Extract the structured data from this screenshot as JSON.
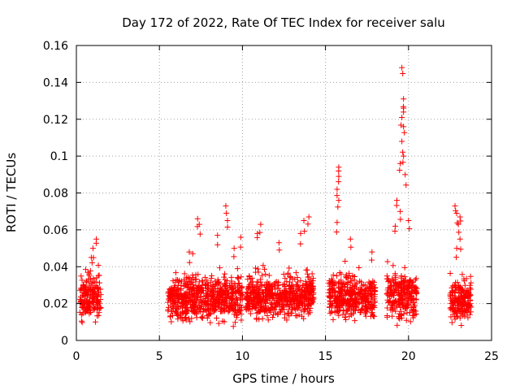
{
  "chart_data": {
    "type": "scatter",
    "title": "Day 172 of 2022, Rate Of TEC Index for receiver salu",
    "xlabel": "GPS time / hours",
    "ylabel": "ROTI / TECUs",
    "xlim": [
      0,
      25
    ],
    "ylim": [
      0,
      0.16
    ],
    "grid": true,
    "marker": "+",
    "color": "#ff0000",
    "x_ticks": [
      0,
      5,
      10,
      15,
      20,
      25
    ],
    "x_tick_labels": [
      "0",
      "5",
      "10",
      "15",
      "20",
      "25"
    ],
    "y_ticks": [
      0,
      0.02,
      0.04,
      0.06,
      0.08,
      0.1,
      0.12,
      0.14,
      0.16
    ],
    "y_tick_labels": [
      "0",
      "0.02",
      "0.04",
      "0.06",
      "0.08",
      "0.1",
      "0.12",
      "0.14",
      "0.16"
    ],
    "series": [
      {
        "name": "ROTI",
        "clusters": [
          {
            "x_range": [
              0.2,
              1.5
            ],
            "y_base": [
              0.008,
              0.035
            ],
            "peaks": [
              [
                1.2,
                0.055
              ],
              [
                1.0,
                0.05
              ],
              [
                0.9,
                0.045
              ]
            ]
          },
          {
            "x_range": [
              5.5,
              10.0
            ],
            "y_base": [
              0.006,
              0.035
            ],
            "peaks": [
              [
                7.3,
                0.066
              ],
              [
                7.4,
                0.063
              ],
              [
                9.0,
                0.073
              ],
              [
                9.1,
                0.065
              ],
              [
                8.5,
                0.057
              ],
              [
                6.8,
                0.048
              ],
              [
                9.5,
                0.05
              ],
              [
                9.9,
                0.056
              ]
            ]
          },
          {
            "x_range": [
              10.2,
              14.3
            ],
            "y_base": [
              0.008,
              0.035
            ],
            "peaks": [
              [
                11.1,
                0.063
              ],
              [
                10.9,
                0.058
              ],
              [
                13.7,
                0.065
              ],
              [
                14.0,
                0.067
              ],
              [
                13.5,
                0.058
              ],
              [
                12.2,
                0.053
              ]
            ]
          },
          {
            "x_range": [
              15.2,
              18.0
            ],
            "y_base": [
              0.007,
              0.035
            ],
            "peaks": [
              [
                15.8,
                0.094
              ],
              [
                15.8,
                0.089
              ],
              [
                15.7,
                0.082
              ],
              [
                15.8,
                0.076
              ],
              [
                15.7,
                0.064
              ],
              [
                16.5,
                0.055
              ],
              [
                17.8,
                0.048
              ]
            ]
          },
          {
            "x_range": [
              18.7,
              20.5
            ],
            "y_base": [
              0.007,
              0.038
            ],
            "peaks": [
              [
                19.6,
                0.148
              ],
              [
                19.7,
                0.131
              ],
              [
                19.7,
                0.126
              ],
              [
                19.6,
                0.121
              ],
              [
                19.7,
                0.116
              ],
              [
                19.6,
                0.108
              ],
              [
                19.7,
                0.1
              ],
              [
                19.5,
                0.096
              ],
              [
                19.8,
                0.09
              ],
              [
                19.3,
                0.076
              ],
              [
                19.5,
                0.07
              ],
              [
                20.0,
                0.065
              ],
              [
                19.2,
                0.062
              ]
            ]
          },
          {
            "x_range": [
              22.5,
              23.8
            ],
            "y_base": [
              0.006,
              0.033
            ],
            "peaks": [
              [
                22.8,
                0.073
              ],
              [
                22.9,
                0.069
              ],
              [
                23.1,
                0.067
              ],
              [
                23.0,
                0.063
              ],
              [
                23.1,
                0.055
              ],
              [
                22.9,
                0.05
              ]
            ]
          }
        ]
      }
    ]
  }
}
